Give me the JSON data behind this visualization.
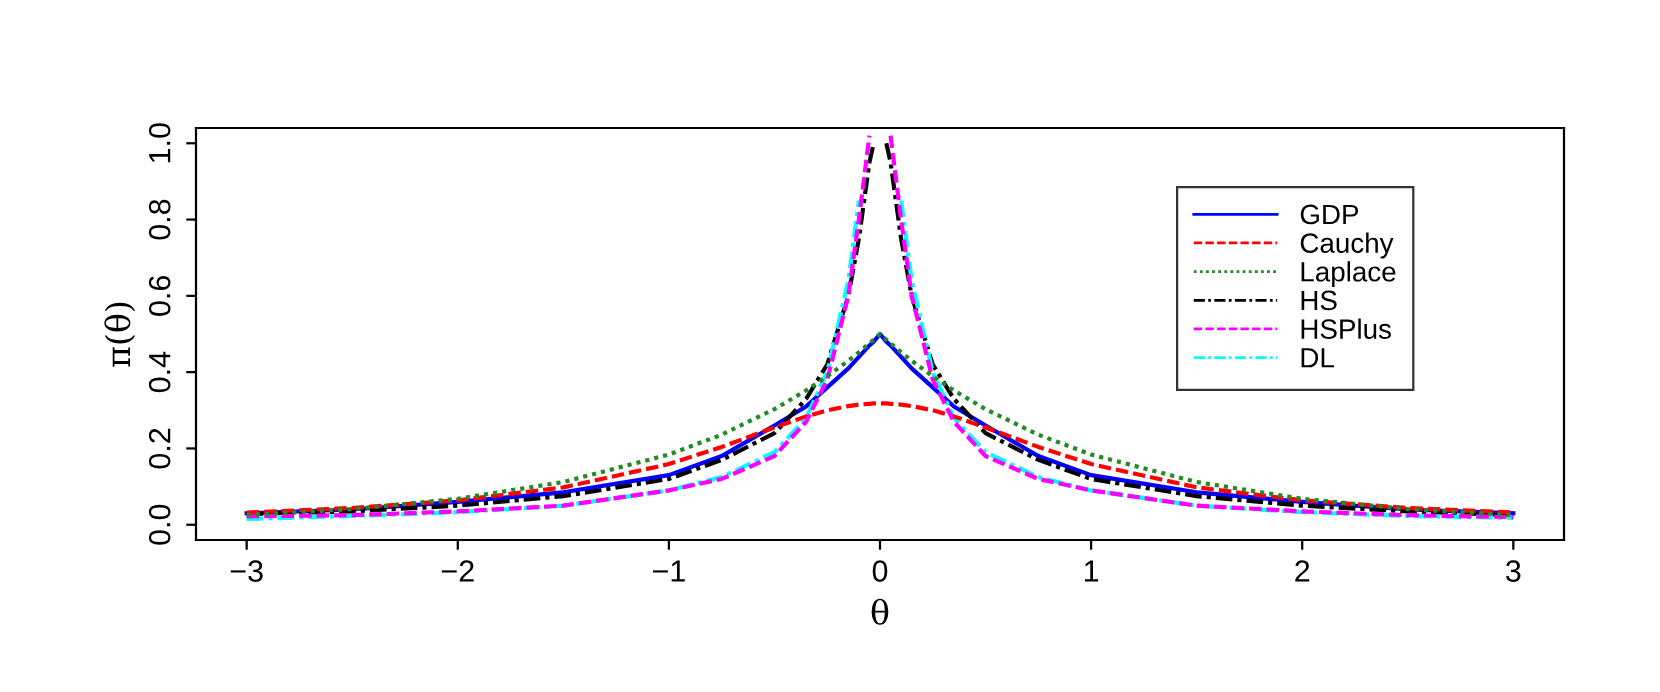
{
  "chart_data": {
    "type": "line",
    "xlabel": "θ",
    "ylabel": "π(θ)",
    "x": [
      -3,
      -2.5,
      -2,
      -1.5,
      -1,
      -0.75,
      -0.5,
      -0.35,
      -0.25,
      -0.15,
      -0.1,
      -0.05,
      -0.03,
      0,
      0.03,
      0.05,
      0.1,
      0.15,
      0.25,
      0.35,
      0.5,
      0.75,
      1,
      1.5,
      2,
      2.5,
      3
    ],
    "series": [
      {
        "name": "GDP",
        "color": "#0000ff",
        "line_style": "solid",
        "values": [
          0.03,
          0.04,
          0.06,
          0.085,
          0.13,
          0.18,
          0.26,
          0.31,
          0.36,
          0.41,
          0.44,
          0.47,
          0.48,
          0.5,
          0.48,
          0.47,
          0.44,
          0.41,
          0.36,
          0.31,
          0.26,
          0.18,
          0.13,
          0.085,
          0.06,
          0.04,
          0.03
        ]
      },
      {
        "name": "Cauchy",
        "color": "#ff0000",
        "line_style": "dashed",
        "values": [
          0.032,
          0.044,
          0.064,
          0.098,
          0.159,
          0.204,
          0.255,
          0.284,
          0.3,
          0.311,
          0.315,
          0.317,
          0.318,
          0.318,
          0.318,
          0.317,
          0.315,
          0.311,
          0.3,
          0.284,
          0.255,
          0.204,
          0.159,
          0.098,
          0.064,
          0.044,
          0.032
        ]
      },
      {
        "name": "Laplace",
        "color": "#228b22",
        "line_style": "dotted",
        "values": [
          0.025,
          0.041,
          0.068,
          0.112,
          0.184,
          0.236,
          0.303,
          0.352,
          0.389,
          0.43,
          0.452,
          0.476,
          0.485,
          0.5,
          0.485,
          0.476,
          0.452,
          0.43,
          0.389,
          0.352,
          0.303,
          0.236,
          0.184,
          0.112,
          0.068,
          0.041,
          0.025
        ]
      },
      {
        "name": "HS",
        "color": "#000000",
        "line_style": "dashdot",
        "values": [
          0.028,
          0.035,
          0.05,
          0.075,
          0.12,
          0.17,
          0.24,
          0.33,
          0.42,
          0.6,
          0.75,
          0.95,
          1.0,
          null,
          1.0,
          0.95,
          0.75,
          0.6,
          0.42,
          0.33,
          0.24,
          0.17,
          0.12,
          0.075,
          0.05,
          0.035,
          0.025
        ]
      },
      {
        "name": "HSPlus",
        "color": "#ff00ff",
        "line_style": "dashed",
        "values": [
          0.022,
          0.025,
          0.035,
          0.05,
          0.09,
          0.12,
          0.18,
          0.27,
          0.38,
          0.6,
          0.8,
          1.02,
          null,
          null,
          null,
          1.02,
          0.8,
          0.6,
          0.38,
          0.27,
          0.18,
          0.12,
          0.09,
          0.05,
          0.035,
          0.025,
          0.02
        ]
      },
      {
        "name": "DL",
        "color": "#00ffff",
        "line_style": "dashdot",
        "values": [
          0.015,
          0.023,
          0.033,
          0.05,
          0.09,
          0.125,
          0.19,
          0.28,
          0.4,
          0.64,
          0.85,
          null,
          null,
          null,
          null,
          null,
          0.85,
          0.64,
          0.4,
          0.28,
          0.19,
          0.125,
          0.09,
          0.05,
          0.033,
          0.023,
          0.018
        ]
      }
    ],
    "xlim": [
      -3.24,
      3.24
    ],
    "ylim": [
      -0.04,
      1.04
    ],
    "xticks": [
      {
        "value": -3,
        "label": "−3"
      },
      {
        "value": -2,
        "label": "−2"
      },
      {
        "value": -1,
        "label": "−1"
      },
      0,
      1,
      2,
      3
    ],
    "yticks": [
      {
        "value": 0,
        "label": "0.0"
      },
      0.2,
      0.4,
      0.6,
      0.8,
      {
        "value": 1,
        "label": "1.0"
      }
    ],
    "legend": "top right",
    "grid": false
  }
}
